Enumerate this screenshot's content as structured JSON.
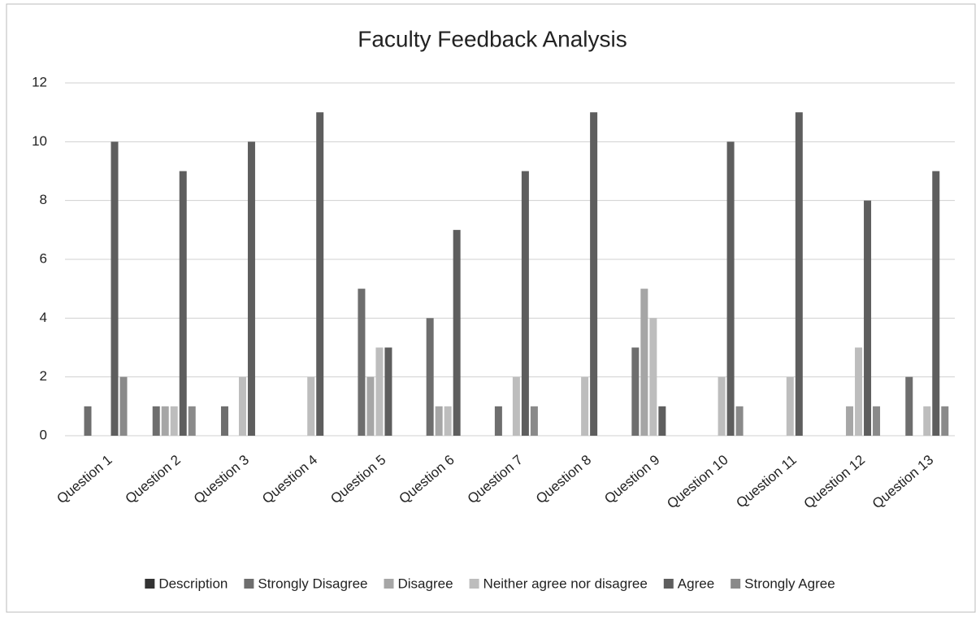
{
  "chart_data": {
    "type": "bar",
    "title": "Faculty Feedback Analysis",
    "categories": [
      "Question 1",
      "Question 2",
      "Question 3",
      "Question 4",
      "Question 5",
      "Question 6",
      "Question 7",
      "Question 8",
      "Question 9",
      "Question 10",
      "Question 11",
      "Question 12",
      "Question 13"
    ],
    "series": [
      {
        "name": "Description",
        "color": "#333333",
        "values": [
          0,
          0,
          0,
          0,
          0,
          0,
          0,
          0,
          0,
          0,
          0,
          0,
          0
        ]
      },
      {
        "name": "Strongly Disagree",
        "color": "#6e6e6e",
        "values": [
          1,
          1,
          1,
          0,
          5,
          4,
          1,
          0,
          3,
          0,
          0,
          0,
          2
        ]
      },
      {
        "name": "Disagree",
        "color": "#a6a6a6",
        "values": [
          0,
          1,
          0,
          0,
          2,
          1,
          0,
          0,
          5,
          0,
          0,
          1,
          0
        ]
      },
      {
        "name": "Neither agree nor disagree",
        "color": "#bdbdbd",
        "values": [
          0,
          1,
          2,
          2,
          3,
          1,
          2,
          2,
          4,
          2,
          2,
          3,
          1
        ]
      },
      {
        "name": "Agree",
        "color": "#5e5e5e",
        "values": [
          10,
          9,
          10,
          11,
          3,
          7,
          9,
          11,
          1,
          10,
          11,
          8,
          9
        ]
      },
      {
        "name": "Strongly Agree",
        "color": "#8a8a8a",
        "values": [
          2,
          1,
          0,
          0,
          0,
          0,
          1,
          0,
          0,
          1,
          0,
          1,
          1
        ]
      }
    ],
    "ylim": [
      0,
      12
    ],
    "yticks": [
      0,
      2,
      4,
      6,
      8,
      10,
      12
    ],
    "grid": true,
    "legend": "bottom"
  }
}
